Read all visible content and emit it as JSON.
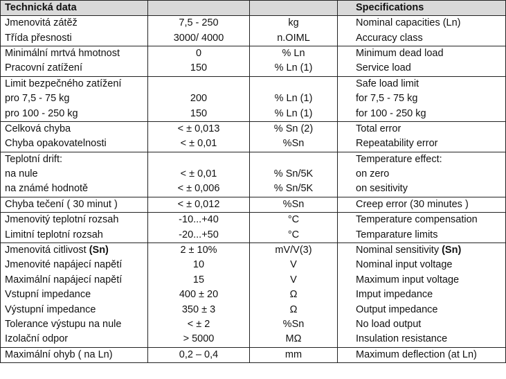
{
  "header": [
    "Technická data",
    null,
    null,
    "Specifications"
  ],
  "groups": [
    [
      [
        "Jmenovitá zátěž",
        "7,5 - 250",
        "kg",
        "Nominal capacities (Ln)"
      ],
      [
        "Třída přesnosti",
        "3000/ 4000",
        "n.OIML",
        "Accuracy class"
      ]
    ],
    [
      [
        "Minimální mrtvá hmotnost",
        "0",
        "% Ln",
        "Minimum dead load"
      ],
      [
        "Pracovní zatížení",
        "150",
        "% Ln (1)",
        "Service load"
      ]
    ],
    [
      [
        "Limit bezpečného zatížení",
        null,
        null,
        "Safe load limit"
      ],
      [
        "pro 7,5 - 75 kg",
        "200",
        "% Ln (1)",
        "for 7,5 - 75 kg"
      ],
      [
        "pro 100 - 250 kg",
        "150",
        "% Ln (1)",
        "for 100 - 250 kg"
      ]
    ],
    [
      [
        "Celková chyba",
        "< ± 0,013",
        "% Sn (2)",
        "Total error"
      ],
      [
        "Chyba opakovatelnosti",
        "< ± 0,01",
        "%Sn",
        "Repeatability error"
      ]
    ],
    [
      [
        "Teplotní drift:",
        null,
        null,
        "Temperature effect:"
      ],
      [
        "na nule",
        "< ± 0,01",
        "% Sn/5K",
        "on zero"
      ],
      [
        "na známé hodnotě",
        "< ± 0,006",
        "% Sn/5K",
        "on sesitivity"
      ]
    ],
    [
      [
        "Chyba tečení ( 30 minut )",
        "< ± 0,012",
        "%Sn",
        "Creep error (30 minutes )"
      ]
    ],
    [
      [
        "Jmenovitý teplotní rozsah",
        "-10...+40",
        "°C",
        "Temperature compensation"
      ],
      [
        "Limitní teplotní rozsah",
        "-20...+50",
        "°C",
        "Temparature limits"
      ]
    ],
    [
      [
        [
          "Jmenovitá citlivost ",
          "(Sn)"
        ],
        "2 ± 10%",
        "mV/V(3)",
        [
          "Nominal sensitivity ",
          "(Sn)"
        ]
      ],
      [
        "Jmenovité napájecí napětí",
        "10",
        "V",
        "Nominal input voltage"
      ],
      [
        "Maximální napájecí napětí",
        "15",
        "V",
        "Maximum input voltage"
      ],
      [
        "Vstupní impedance",
        "400 ± 20",
        "Ω",
        "Imput impedance"
      ],
      [
        "Výstupní impedance",
        "350 ± 3",
        "Ω",
        "Output impedance"
      ],
      [
        "Tolerance výstupu na nule",
        "< ± 2",
        "%Sn",
        "No load output"
      ],
      [
        "Izolační odpor",
        "> 5000",
        "MΩ",
        "Insulation resistance"
      ]
    ],
    [
      [
        "Maximální ohyb ( na Ln)",
        "0,2 – 0,4",
        "mm",
        "Maximum deflection (at Ln)"
      ]
    ]
  ]
}
